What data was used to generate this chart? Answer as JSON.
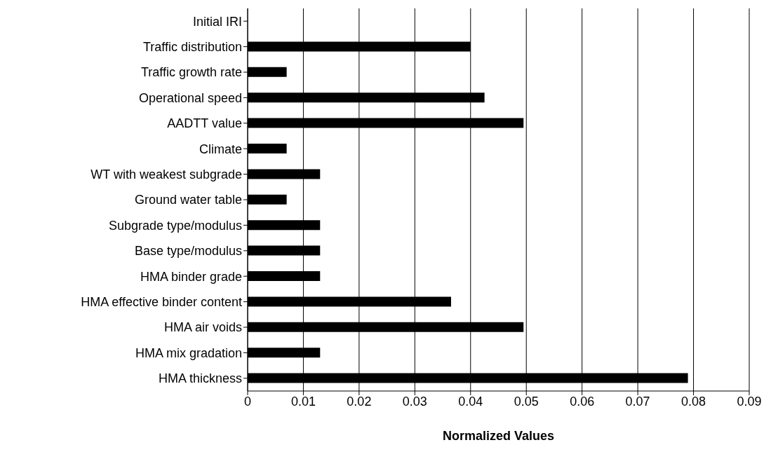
{
  "chart_data": {
    "type": "bar",
    "orientation": "horizontal",
    "xlabel": "Normalized Values",
    "categories": [
      "Initial IRI",
      "Traffic distribution",
      "Traffic growth rate",
      "Operational speed ",
      "AADTT value",
      "Climate",
      "WT with weakest subgrade ",
      "Ground water table",
      "Subgrade type/modulus",
      "Base type/modulus",
      "HMA binder grade",
      "HMA effective binder content",
      "HMA air voids",
      "HMA mix gradation",
      "HMA thickness"
    ],
    "values": [
      0,
      0.04,
      0.007,
      0.0425,
      0.0495,
      0.007,
      0.013,
      0.007,
      0.013,
      0.013,
      0.013,
      0.0365,
      0.0495,
      0.013,
      0.079
    ],
    "color": "#000000",
    "xlim": [
      0,
      0.09
    ],
    "xticks": [
      0,
      0.01,
      0.02,
      0.03,
      0.04,
      0.05,
      0.06,
      0.07,
      0.08,
      0.09
    ],
    "grid": "x"
  }
}
